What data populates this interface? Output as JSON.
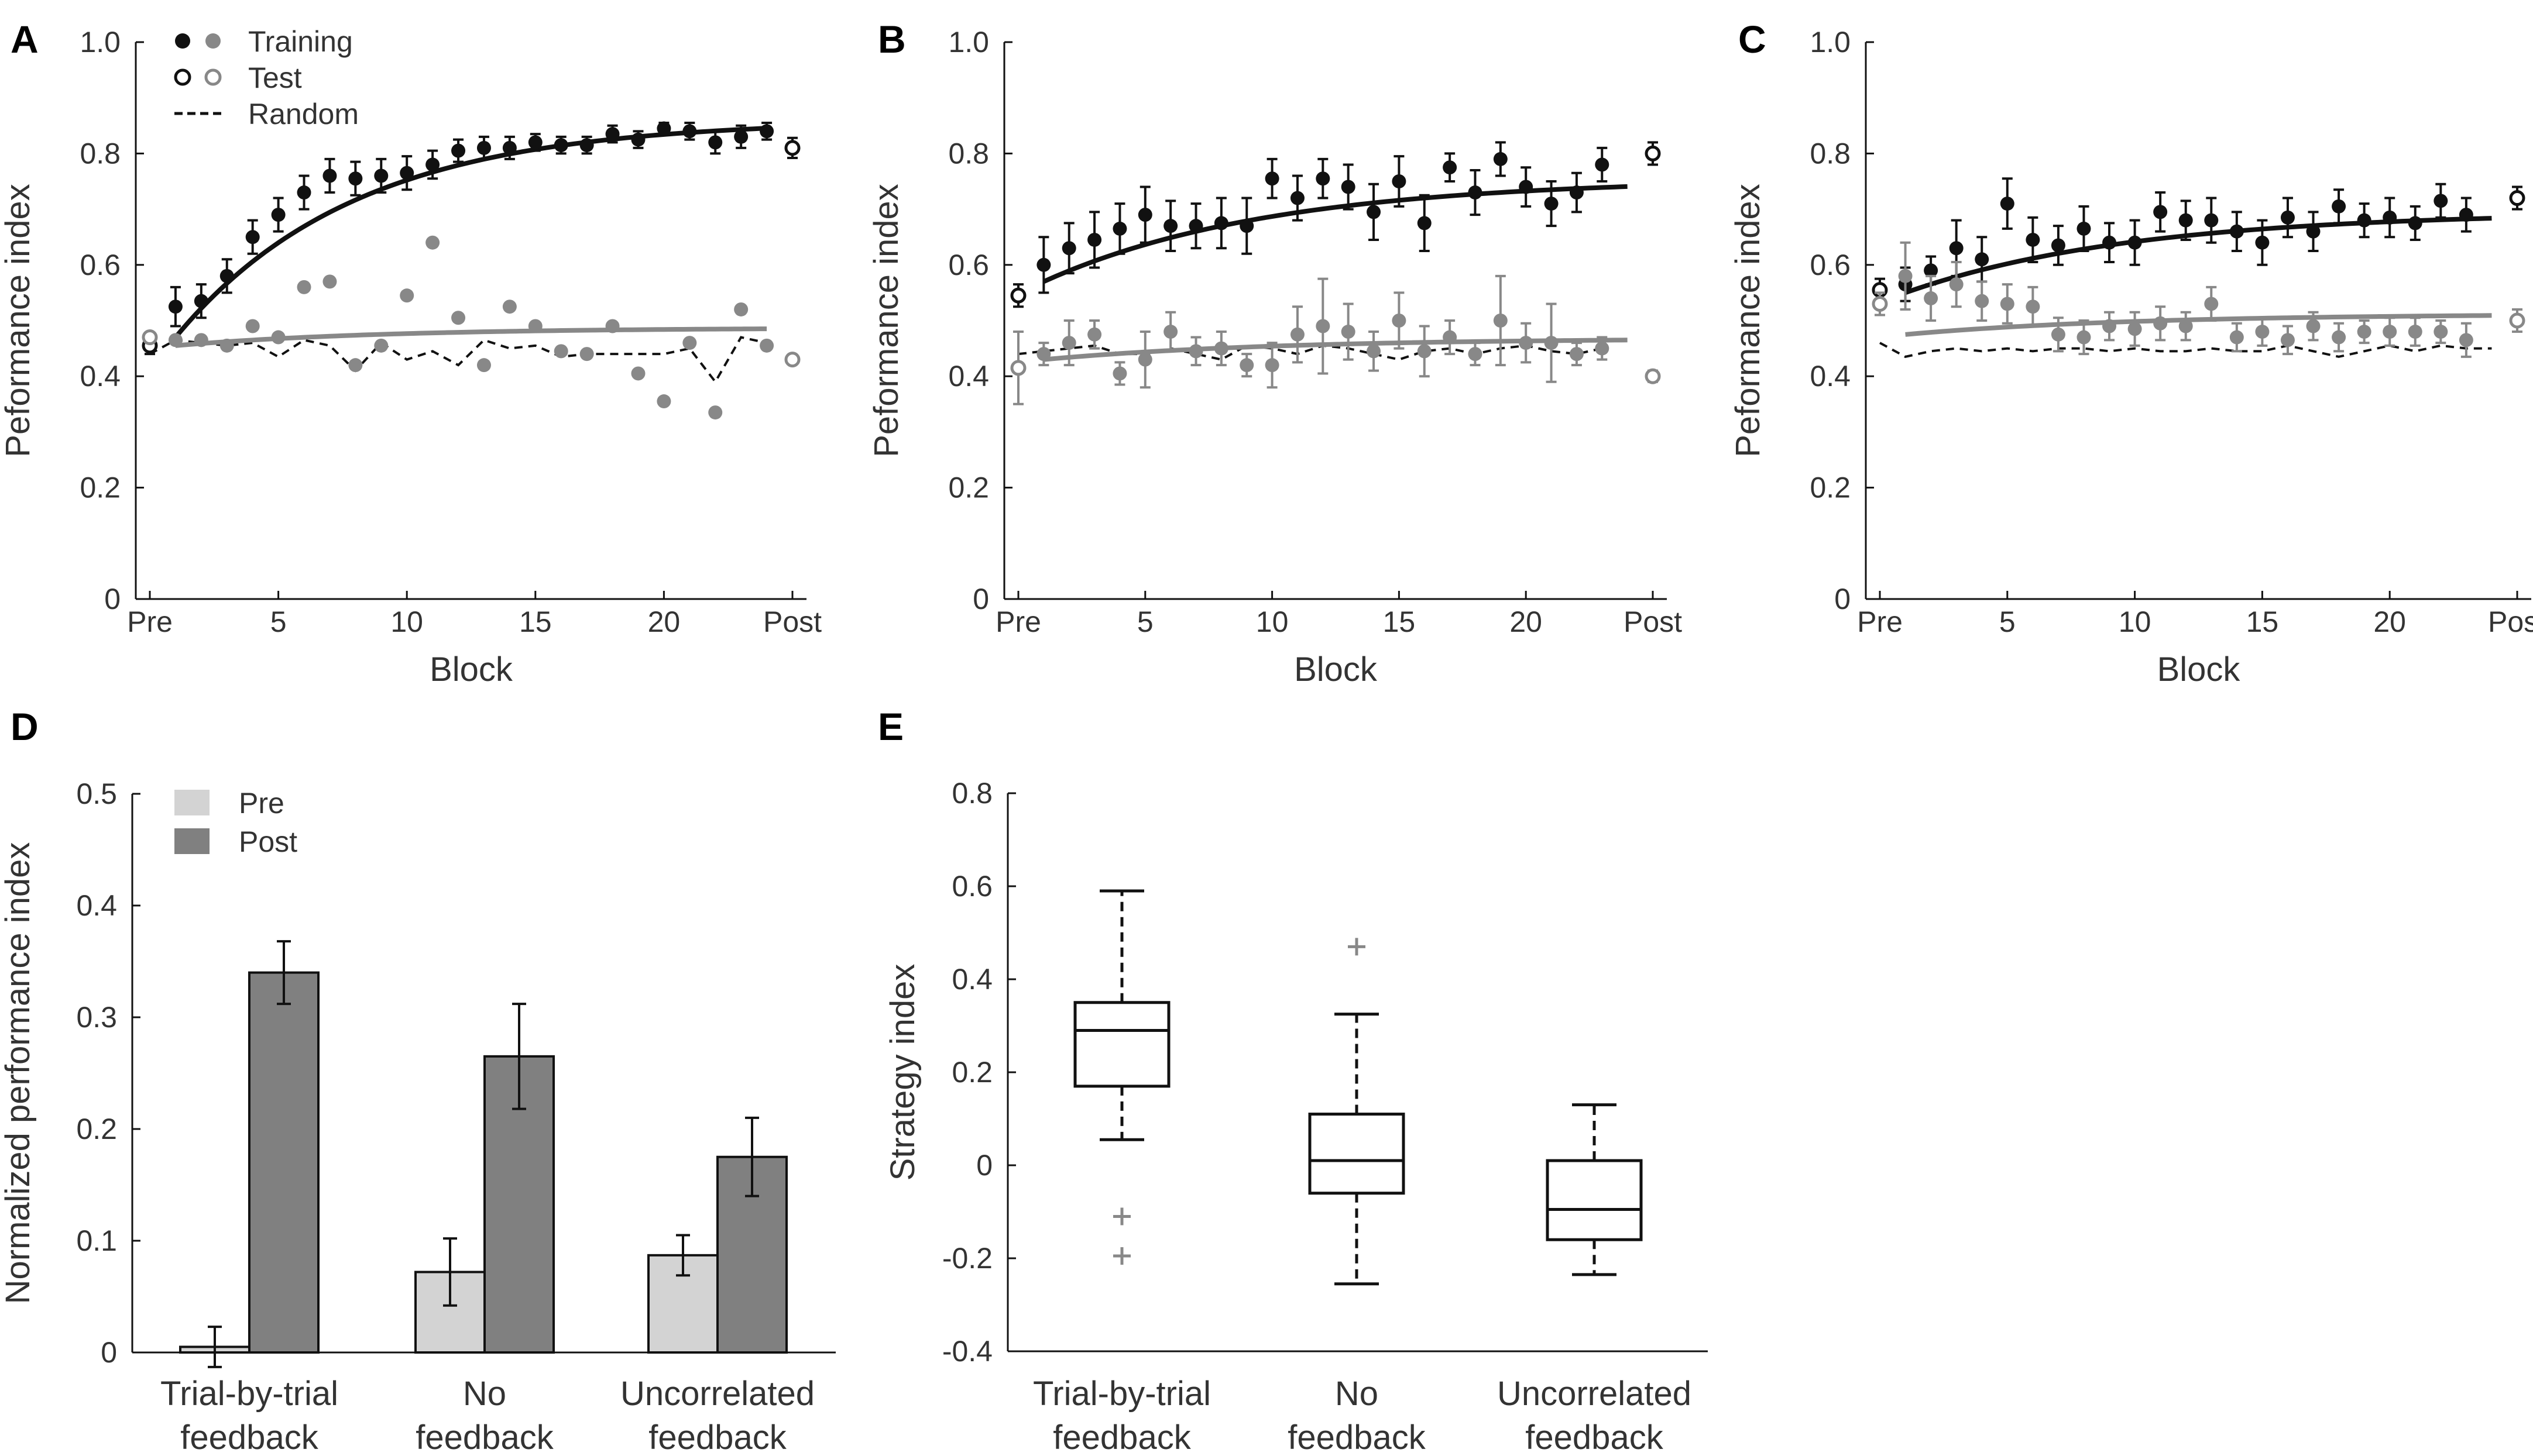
{
  "chart_data": [
    {
      "panel": "A",
      "type": "scatter",
      "xlabel": "Block",
      "ylabel": "Peformance index",
      "ylim": [
        0,
        1
      ],
      "yticks": [
        "0",
        "0.2",
        "0.4",
        "0.6",
        "0.8",
        "1.0"
      ],
      "xticks": [
        "Pre",
        "5",
        "10",
        "15",
        "20",
        "Post"
      ],
      "legend": {
        "training": "Training",
        "test": "Test",
        "random": "Random"
      },
      "test_black": {
        "pre": 0.455,
        "pre_err": 0.015,
        "post": 0.81,
        "post_err": 0.018
      },
      "test_gray": {
        "pre": 0.47,
        "post": 0.43
      },
      "series": [
        {
          "name": "Training (black)",
          "values": [
            0.525,
            0.535,
            0.58,
            0.65,
            0.69,
            0.73,
            0.76,
            0.755,
            0.76,
            0.765,
            0.78,
            0.805,
            0.81,
            0.81,
            0.82,
            0.815,
            0.815,
            0.835,
            0.825,
            0.845,
            0.84,
            0.82,
            0.83,
            0.84
          ],
          "errors": [
            0.035,
            0.03,
            0.03,
            0.03,
            0.03,
            0.03,
            0.03,
            0.03,
            0.03,
            0.03,
            0.025,
            0.02,
            0.02,
            0.02,
            0.015,
            0.015,
            0.015,
            0.015,
            0.015,
            0.01,
            0.015,
            0.02,
            0.02,
            0.015
          ]
        },
        {
          "name": "Training (gray)",
          "values": [
            0.465,
            0.465,
            0.455,
            0.49,
            0.47,
            0.56,
            0.57,
            0.42,
            0.455,
            0.545,
            0.64,
            0.505,
            0.42,
            0.525,
            0.49,
            0.445,
            0.44,
            0.49,
            0.405,
            0.355,
            0.46,
            0.335,
            0.52,
            0.455
          ]
        }
      ],
      "random": [
        0.44,
        0.465,
        0.46,
        0.455,
        0.46,
        0.435,
        0.465,
        0.455,
        0.41,
        0.46,
        0.43,
        0.445,
        0.42,
        0.465,
        0.45,
        0.455,
        0.435,
        0.44,
        0.44,
        0.44,
        0.44,
        0.45,
        0.39,
        0.47,
        0.46
      ],
      "fit_black_shape": "exponential rise 0.47 → 0.86",
      "fit_gray_shape": "slow rise 0.455 → 0.487"
    },
    {
      "panel": "B",
      "type": "scatter",
      "xlabel": "Block",
      "ylabel": "Peformance index",
      "ylim": [
        0,
        1
      ],
      "yticks": [
        "0",
        "0.2",
        "0.4",
        "0.6",
        "0.8",
        "1.0"
      ],
      "xticks": [
        "Pre",
        "5",
        "10",
        "15",
        "20",
        "Post"
      ],
      "test_black": {
        "pre": 0.545,
        "pre_err": 0.02,
        "post": 0.8,
        "post_err": 0.02
      },
      "test_gray": {
        "pre": 0.415,
        "pre_err": 0.065,
        "post": 0.4,
        "post_err": 0.01
      },
      "series": [
        {
          "name": "Training (black)",
          "values": [
            0.6,
            0.63,
            0.645,
            0.665,
            0.69,
            0.67,
            0.67,
            0.675,
            0.67,
            0.755,
            0.72,
            0.755,
            0.74,
            0.695,
            0.75,
            0.675,
            0.775,
            0.73,
            0.79,
            0.74,
            0.71,
            0.73,
            0.78
          ],
          "errors": [
            0.05,
            0.045,
            0.05,
            0.045,
            0.05,
            0.045,
            0.04,
            0.045,
            0.05,
            0.035,
            0.04,
            0.035,
            0.04,
            0.05,
            0.045,
            0.05,
            0.025,
            0.04,
            0.03,
            0.035,
            0.04,
            0.035,
            0.03
          ]
        },
        {
          "name": "Training (gray)",
          "values": [
            0.44,
            0.46,
            0.475,
            0.405,
            0.43,
            0.48,
            0.445,
            0.45,
            0.42,
            0.42,
            0.475,
            0.49,
            0.48,
            0.445,
            0.5,
            0.445,
            0.47,
            0.44,
            0.5,
            0.46,
            0.46,
            0.44,
            0.45
          ],
          "errors": [
            0.02,
            0.04,
            0.025,
            0.02,
            0.05,
            0.035,
            0.025,
            0.03,
            0.02,
            0.04,
            0.05,
            0.085,
            0.05,
            0.035,
            0.05,
            0.045,
            0.03,
            0.02,
            0.08,
            0.035,
            0.07,
            0.02,
            0.02
          ]
        }
      ],
      "random": [
        0.44,
        0.445,
        0.45,
        0.455,
        0.44,
        0.44,
        0.45,
        0.44,
        0.43,
        0.455,
        0.45,
        0.44,
        0.455,
        0.45,
        0.44,
        0.43,
        0.445,
        0.45,
        0.44,
        0.45,
        0.455,
        0.445,
        0.44,
        0.45
      ],
      "fit_black_shape": "rise 0.57 → 0.75",
      "fit_gray_shape": "slow rise 0.43 → 0.465"
    },
    {
      "panel": "C",
      "type": "scatter",
      "xlabel": "Block",
      "ylabel": "Peformance index",
      "ylim": [
        0,
        1
      ],
      "yticks": [
        "0",
        "0.2",
        "0.4",
        "0.6",
        "0.8",
        "1.0"
      ],
      "xticks": [
        "Pre",
        "5",
        "10",
        "15",
        "20",
        "Post"
      ],
      "test_black": {
        "pre": 0.555,
        "pre_err": 0.02,
        "post": 0.72,
        "post_err": 0.02
      },
      "test_gray": {
        "pre": 0.53,
        "pre_err": 0.02,
        "post": 0.5,
        "post_err": 0.02
      },
      "series": [
        {
          "name": "Training (black)",
          "values": [
            0.565,
            0.59,
            0.63,
            0.61,
            0.71,
            0.645,
            0.635,
            0.665,
            0.64,
            0.64,
            0.695,
            0.68,
            0.68,
            0.66,
            0.64,
            0.685,
            0.66,
            0.705,
            0.68,
            0.685,
            0.675,
            0.715,
            0.69
          ],
          "errors": [
            0.03,
            0.025,
            0.05,
            0.04,
            0.045,
            0.04,
            0.035,
            0.04,
            0.035,
            0.04,
            0.035,
            0.035,
            0.04,
            0.035,
            0.04,
            0.035,
            0.035,
            0.03,
            0.03,
            0.035,
            0.03,
            0.03,
            0.03
          ]
        },
        {
          "name": "Training (gray)",
          "values": [
            0.58,
            0.54,
            0.565,
            0.535,
            0.53,
            0.525,
            0.475,
            0.47,
            0.49,
            0.485,
            0.495,
            0.49,
            0.53,
            0.47,
            0.48,
            0.465,
            0.49,
            0.47,
            0.48,
            0.48,
            0.48,
            0.48,
            0.465
          ],
          "errors": [
            0.06,
            0.04,
            0.04,
            0.035,
            0.035,
            0.035,
            0.03,
            0.03,
            0.025,
            0.03,
            0.03,
            0.025,
            0.03,
            0.025,
            0.025,
            0.025,
            0.025,
            0.025,
            0.02,
            0.025,
            0.025,
            0.02,
            0.03
          ]
        }
      ],
      "random": [
        0.46,
        0.435,
        0.445,
        0.45,
        0.445,
        0.45,
        0.445,
        0.45,
        0.45,
        0.445,
        0.45,
        0.445,
        0.445,
        0.45,
        0.445,
        0.445,
        0.455,
        0.445,
        0.435,
        0.445,
        0.455,
        0.445,
        0.455,
        0.45,
        0.45
      ],
      "fit_black_shape": "rise 0.55 → 0.69",
      "fit_gray_shape": "slow rise 0.475 → 0.51"
    },
    {
      "panel": "D",
      "type": "bar",
      "ylabel": "Normalized performance index",
      "ylim": [
        0,
        0.5
      ],
      "yticks": [
        "0",
        "0.1",
        "0.2",
        "0.3",
        "0.4",
        "0.5"
      ],
      "categories": [
        [
          "Trial-by-trial",
          "feedback"
        ],
        [
          "No",
          "feedback"
        ],
        [
          "Uncorrelated",
          "feedback"
        ]
      ],
      "legend": {
        "pre": "Pre",
        "post": "Post"
      },
      "colors": {
        "pre": "#d3d3d3",
        "post": "#808080"
      },
      "series": [
        {
          "name": "Pre",
          "values": [
            0.005,
            0.072,
            0.087
          ],
          "errors": [
            0.018,
            0.03,
            0.018
          ]
        },
        {
          "name": "Post",
          "values": [
            0.34,
            0.265,
            0.175
          ],
          "errors": [
            0.028,
            0.047,
            0.035
          ]
        }
      ]
    },
    {
      "panel": "E",
      "type": "box",
      "ylabel": "Strategy index",
      "ylim": [
        -0.4,
        0.8
      ],
      "yticks": [
        "-0.4",
        "-0.2",
        "0",
        "0.2",
        "0.4",
        "0.6",
        "0.8"
      ],
      "categories": [
        [
          "Trial-by-trial",
          "feedback"
        ],
        [
          "No",
          "feedback"
        ],
        [
          "Uncorrelated",
          "feedback"
        ]
      ],
      "boxes": [
        {
          "min": 0.055,
          "q1": 0.17,
          "median": 0.29,
          "q3": 0.35,
          "max": 0.59,
          "outliers": [
            -0.11,
            -0.195
          ]
        },
        {
          "min": -0.255,
          "q1": -0.06,
          "median": 0.01,
          "q3": 0.11,
          "max": 0.325,
          "outliers": [
            0.47
          ]
        },
        {
          "min": -0.235,
          "q1": -0.16,
          "median": -0.095,
          "q3": 0.01,
          "max": 0.13,
          "outliers": []
        }
      ]
    }
  ]
}
